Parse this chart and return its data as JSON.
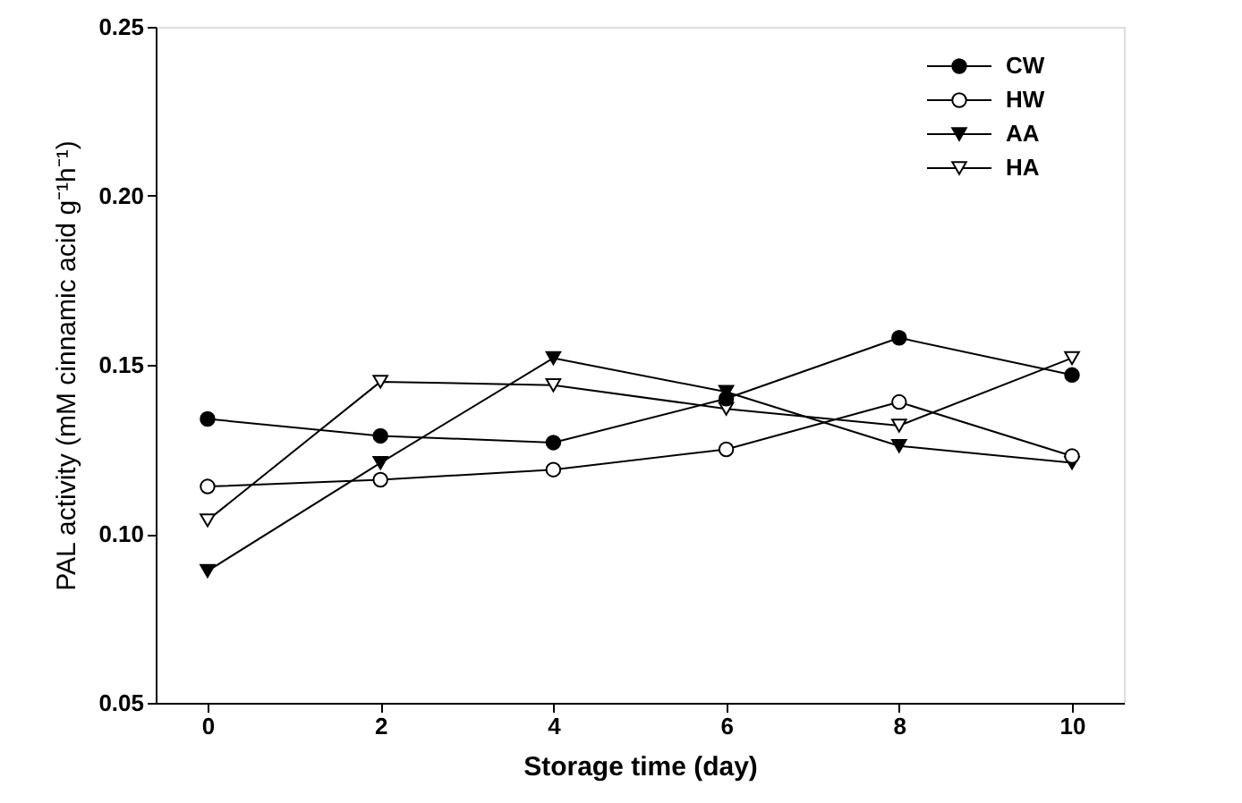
{
  "chart_data": {
    "type": "line",
    "xlabel": "Storage time (day)",
    "ylabel": "PAL activity (mM cinnamic acid g⁻¹h⁻¹)",
    "x": [
      0,
      2,
      4,
      6,
      8,
      10
    ],
    "xlim": [
      -0.6,
      10.6
    ],
    "xticks": [
      0,
      2,
      4,
      6,
      8,
      10
    ],
    "ylim": [
      0.05,
      0.25
    ],
    "yticks": [
      0.05,
      {
        "value": 0.1,
        "label": "0.10"
      },
      0.15,
      {
        "value": 0.2,
        "label": "0.20"
      },
      0.25
    ],
    "grid": false,
    "legend": "top right",
    "line_style": "solid",
    "series": [
      {
        "name": "CW",
        "color": "#000000",
        "marker": "circle",
        "values": [
          0.134,
          0.129,
          0.127,
          0.14,
          0.158,
          0.147
        ]
      },
      {
        "name": "HW",
        "color": "#ffffff",
        "marker": "circle",
        "values": [
          0.114,
          0.116,
          0.119,
          0.125,
          0.139,
          0.123
        ]
      },
      {
        "name": "AA",
        "color": "#000000",
        "marker": "triangle",
        "values": [
          0.089,
          0.121,
          0.152,
          0.142,
          0.126,
          0.121
        ]
      },
      {
        "name": "HA",
        "color": "#ffffff",
        "marker": "triangle",
        "values": [
          0.104,
          0.145,
          0.144,
          0.137,
          0.132,
          0.152
        ]
      }
    ]
  }
}
